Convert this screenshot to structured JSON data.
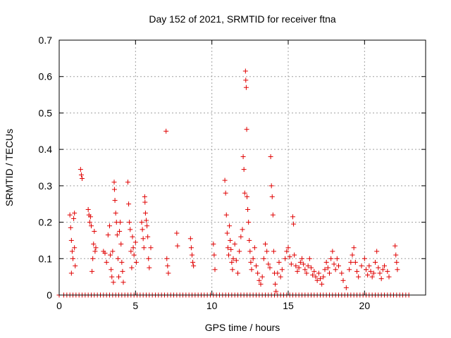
{
  "chart_data": {
    "type": "scatter",
    "title": "Day 152 of 2021, SRMTID for receiver ftna",
    "xlabel": "GPS time / hours",
    "ylabel": "SRMTID / TECUs",
    "xlim": [
      0,
      24
    ],
    "ylim": [
      0,
      0.7
    ],
    "xticks": [
      0,
      5,
      10,
      15,
      20
    ],
    "xtick_labels": [
      "0",
      "5",
      "10",
      "15",
      "20"
    ],
    "yticks": [
      0,
      0.1,
      0.2,
      0.3,
      0.4,
      0.5,
      0.6,
      0.7
    ],
    "ytick_labels": [
      "0",
      "0.1",
      "0.2",
      "0.3",
      "0.4",
      "0.5",
      "0.6",
      "0.7"
    ],
    "grid": true,
    "marker": "+",
    "series": [
      {
        "name": "SRMTID",
        "color": "#e00000",
        "points": [
          [
            0.7,
            0.22
          ],
          [
            0.75,
            0.185
          ],
          [
            0.8,
            0.15
          ],
          [
            0.8,
            0.06
          ],
          [
            0.85,
            0.12
          ],
          [
            0.9,
            0.1
          ],
          [
            0.95,
            0.21
          ],
          [
            1.0,
            0.225
          ],
          [
            1.0,
            0.13
          ],
          [
            1.05,
            0.08
          ],
          [
            1.4,
            0.345
          ],
          [
            1.45,
            0.33
          ],
          [
            1.5,
            0.32
          ],
          [
            1.9,
            0.235
          ],
          [
            1.95,
            0.22
          ],
          [
            2.0,
            0.2
          ],
          [
            2.05,
            0.215
          ],
          [
            2.1,
            0.19
          ],
          [
            2.15,
            0.065
          ],
          [
            2.2,
            0.1
          ],
          [
            2.25,
            0.14
          ],
          [
            2.3,
            0.175
          ],
          [
            2.35,
            0.12
          ],
          [
            2.4,
            0.13
          ],
          [
            2.9,
            0.12
          ],
          [
            3.0,
            0.115
          ],
          [
            3.1,
            0.09
          ],
          [
            3.2,
            0.165
          ],
          [
            3.3,
            0.19
          ],
          [
            3.35,
            0.11
          ],
          [
            3.4,
            0.07
          ],
          [
            3.45,
            0.05
          ],
          [
            3.5,
            0.12
          ],
          [
            3.55,
            0.035
          ],
          [
            3.6,
            0.31
          ],
          [
            3.62,
            0.29
          ],
          [
            3.65,
            0.26
          ],
          [
            3.7,
            0.225
          ],
          [
            3.75,
            0.2
          ],
          [
            3.8,
            0.165
          ],
          [
            3.85,
            0.1
          ],
          [
            3.9,
            0.05
          ],
          [
            3.95,
            0.175
          ],
          [
            4.0,
            0.2
          ],
          [
            4.05,
            0.14
          ],
          [
            4.1,
            0.09
          ],
          [
            4.15,
            0.065
          ],
          [
            4.2,
            0.035
          ],
          [
            4.5,
            0.31
          ],
          [
            4.55,
            0.25
          ],
          [
            4.6,
            0.2
          ],
          [
            4.65,
            0.18
          ],
          [
            4.7,
            0.12
          ],
          [
            4.75,
            0.075
          ],
          [
            4.8,
            0.16
          ],
          [
            4.85,
            0.13
          ],
          [
            4.9,
            0.11
          ],
          [
            5.0,
            0.145
          ],
          [
            5.05,
            0.09
          ],
          [
            5.4,
            0.2
          ],
          [
            5.45,
            0.18
          ],
          [
            5.5,
            0.155
          ],
          [
            5.55,
            0.13
          ],
          [
            5.6,
            0.27
          ],
          [
            5.62,
            0.255
          ],
          [
            5.65,
            0.225
          ],
          [
            5.7,
            0.205
          ],
          [
            5.75,
            0.19
          ],
          [
            5.8,
            0.16
          ],
          [
            5.85,
            0.1
          ],
          [
            5.9,
            0.075
          ],
          [
            6.0,
            0.13
          ],
          [
            7.0,
            0.45
          ],
          [
            7.05,
            0.1
          ],
          [
            7.1,
            0.08
          ],
          [
            7.15,
            0.06
          ],
          [
            7.7,
            0.17
          ],
          [
            7.75,
            0.135
          ],
          [
            8.6,
            0.155
          ],
          [
            8.65,
            0.13
          ],
          [
            8.7,
            0.11
          ],
          [
            8.75,
            0.09
          ],
          [
            8.8,
            0.08
          ],
          [
            10.1,
            0.14
          ],
          [
            10.15,
            0.11
          ],
          [
            10.2,
            0.07
          ],
          [
            10.85,
            0.315
          ],
          [
            10.9,
            0.28
          ],
          [
            10.95,
            0.22
          ],
          [
            11.0,
            0.17
          ],
          [
            11.05,
            0.13
          ],
          [
            11.1,
            0.11
          ],
          [
            11.15,
            0.19
          ],
          [
            11.2,
            0.15
          ],
          [
            11.25,
            0.125
          ],
          [
            11.3,
            0.09
          ],
          [
            11.35,
            0.07
          ],
          [
            11.4,
            0.1
          ],
          [
            11.5,
            0.14
          ],
          [
            11.6,
            0.095
          ],
          [
            11.7,
            0.06
          ],
          [
            11.8,
            0.12
          ],
          [
            11.9,
            0.16
          ],
          [
            12.0,
            0.18
          ],
          [
            12.05,
            0.38
          ],
          [
            12.1,
            0.345
          ],
          [
            12.15,
            0.28
          ],
          [
            12.2,
            0.615
          ],
          [
            12.22,
            0.59
          ],
          [
            12.25,
            0.57
          ],
          [
            12.28,
            0.455
          ],
          [
            12.3,
            0.27
          ],
          [
            12.35,
            0.235
          ],
          [
            12.4,
            0.2
          ],
          [
            12.45,
            0.15
          ],
          [
            12.5,
            0.12
          ],
          [
            12.55,
            0.09
          ],
          [
            12.6,
            0.07
          ],
          [
            12.7,
            0.1
          ],
          [
            12.8,
            0.13
          ],
          [
            12.9,
            0.08
          ],
          [
            13.0,
            0.06
          ],
          [
            13.1,
            0.04
          ],
          [
            13.2,
            0.03
          ],
          [
            13.3,
            0.05
          ],
          [
            13.4,
            0.1
          ],
          [
            13.5,
            0.14
          ],
          [
            13.6,
            0.12
          ],
          [
            13.7,
            0.085
          ],
          [
            13.8,
            0.075
          ],
          [
            13.85,
            0.38
          ],
          [
            13.9,
            0.3
          ],
          [
            13.95,
            0.27
          ],
          [
            14.0,
            0.22
          ],
          [
            14.05,
            0.12
          ],
          [
            14.1,
            0.06
          ],
          [
            14.15,
            0.03
          ],
          [
            14.2,
            0.01
          ],
          [
            14.3,
            0.06
          ],
          [
            14.4,
            0.09
          ],
          [
            14.5,
            0.05
          ],
          [
            14.6,
            0.07
          ],
          [
            14.8,
            0.1
          ],
          [
            14.9,
            0.12
          ],
          [
            15.0,
            0.13
          ],
          [
            15.1,
            0.105
          ],
          [
            15.2,
            0.085
          ],
          [
            15.3,
            0.215
          ],
          [
            15.35,
            0.195
          ],
          [
            15.4,
            0.11
          ],
          [
            15.5,
            0.08
          ],
          [
            15.6,
            0.065
          ],
          [
            15.7,
            0.075
          ],
          [
            15.8,
            0.09
          ],
          [
            15.9,
            0.1
          ],
          [
            16.0,
            0.085
          ],
          [
            16.1,
            0.07
          ],
          [
            16.2,
            0.06
          ],
          [
            16.3,
            0.08
          ],
          [
            16.4,
            0.1
          ],
          [
            16.5,
            0.075
          ],
          [
            16.6,
            0.055
          ],
          [
            16.7,
            0.065
          ],
          [
            16.8,
            0.05
          ],
          [
            16.9,
            0.04
          ],
          [
            17.0,
            0.06
          ],
          [
            17.1,
            0.045
          ],
          [
            17.2,
            0.03
          ],
          [
            17.3,
            0.05
          ],
          [
            17.4,
            0.07
          ],
          [
            17.5,
            0.09
          ],
          [
            17.6,
            0.075
          ],
          [
            17.7,
            0.06
          ],
          [
            17.8,
            0.1
          ],
          [
            17.9,
            0.12
          ],
          [
            18.0,
            0.085
          ],
          [
            18.1,
            0.07
          ],
          [
            18.2,
            0.1
          ],
          [
            18.3,
            0.08
          ],
          [
            18.5,
            0.06
          ],
          [
            18.6,
            0.04
          ],
          [
            18.8,
            0.02
          ],
          [
            19.0,
            0.07
          ],
          [
            19.1,
            0.09
          ],
          [
            19.2,
            0.11
          ],
          [
            19.3,
            0.13
          ],
          [
            19.4,
            0.09
          ],
          [
            19.5,
            0.065
          ],
          [
            19.6,
            0.05
          ],
          [
            19.8,
            0.08
          ],
          [
            20.0,
            0.1
          ],
          [
            20.1,
            0.07
          ],
          [
            20.2,
            0.055
          ],
          [
            20.3,
            0.08
          ],
          [
            20.4,
            0.065
          ],
          [
            20.5,
            0.05
          ],
          [
            20.6,
            0.06
          ],
          [
            20.7,
            0.09
          ],
          [
            20.8,
            0.12
          ],
          [
            20.9,
            0.075
          ],
          [
            21.0,
            0.06
          ],
          [
            21.1,
            0.045
          ],
          [
            21.2,
            0.07
          ],
          [
            21.3,
            0.08
          ],
          [
            21.5,
            0.065
          ],
          [
            21.6,
            0.05
          ],
          [
            22.0,
            0.135
          ],
          [
            22.05,
            0.11
          ],
          [
            22.1,
            0.09
          ],
          [
            22.15,
            0.07
          ]
        ],
        "zero_points_x": [
          0.0,
          0.3,
          0.5,
          0.7,
          0.9,
          1.1,
          1.3,
          1.5,
          1.7,
          1.9,
          2.1,
          2.3,
          2.5,
          2.7,
          2.9,
          3.1,
          3.3,
          3.5,
          3.7,
          3.9,
          4.1,
          4.3,
          4.5,
          4.7,
          4.9,
          5.1,
          5.3,
          5.5,
          5.7,
          5.9,
          6.1,
          6.3,
          6.5,
          6.7,
          6.9,
          7.1,
          7.3,
          7.5,
          7.7,
          7.9,
          8.1,
          8.3,
          8.5,
          8.7,
          8.9,
          9.1,
          9.3,
          9.5,
          9.7,
          9.9,
          10.1,
          10.3,
          10.5,
          10.7,
          10.9,
          11.1,
          11.3,
          11.5,
          11.7,
          11.9,
          12.1,
          12.3,
          12.5,
          12.7,
          12.9,
          13.1,
          13.3,
          13.5,
          13.7,
          13.9,
          14.1,
          14.3,
          14.5,
          14.7,
          14.9,
          15.1,
          15.3,
          15.5,
          15.7,
          15.9,
          16.1,
          16.3,
          16.5,
          16.7,
          16.9,
          17.1,
          17.3,
          17.5,
          17.7,
          17.9,
          18.1,
          18.3,
          18.5,
          18.7,
          18.9,
          19.1,
          19.3,
          19.5,
          19.7,
          19.9,
          20.1,
          20.3,
          20.5,
          20.7,
          20.9,
          21.1,
          21.3,
          21.5,
          21.7,
          21.9,
          22.1,
          22.3,
          22.5,
          22.7,
          22.9
        ]
      }
    ]
  }
}
